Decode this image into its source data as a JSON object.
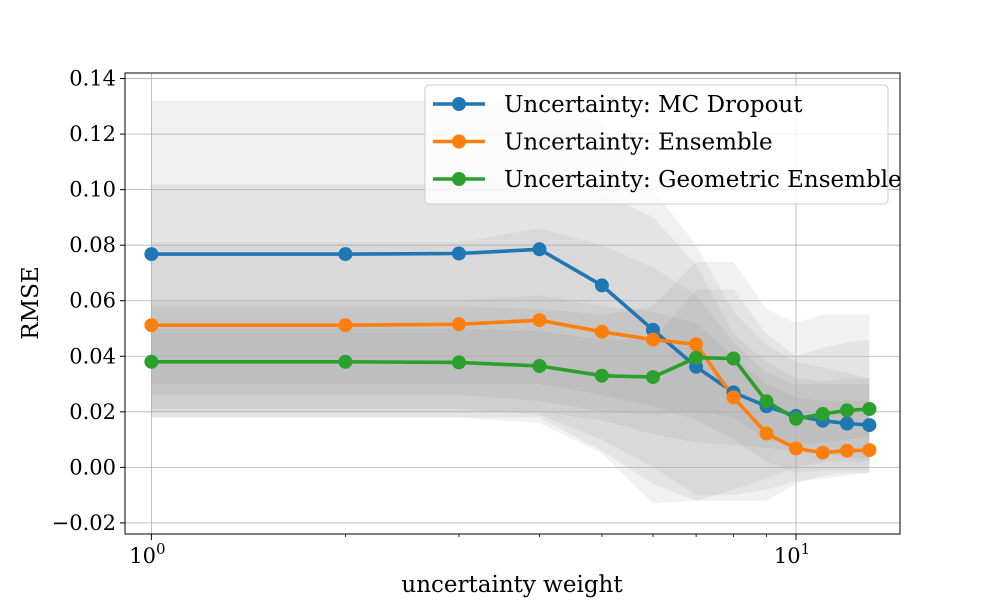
{
  "chart_data": {
    "type": "line",
    "title": "",
    "xlabel": "uncertainty weight",
    "ylabel": "RMSE",
    "xscale": "log",
    "xlim": [
      0.91,
      14.5
    ],
    "ylim": [
      -0.024,
      0.142
    ],
    "grid": true,
    "legend_location": "top-right",
    "x": [
      1,
      2,
      3,
      4,
      5,
      6,
      7,
      8,
      9,
      10,
      11,
      12,
      13
    ],
    "y_ticks": [
      -0.02,
      0.0,
      0.02,
      0.04,
      0.06,
      0.08,
      0.1,
      0.12,
      0.14
    ],
    "y_tick_labels": [
      "−0.02",
      "0.00",
      "0.02",
      "0.04",
      "0.06",
      "0.08",
      "0.10",
      "0.12",
      "0.14"
    ],
    "x_ticks": [
      {
        "value": 1,
        "base": "10",
        "exponent": "0"
      },
      {
        "value": 10,
        "base": "10",
        "exponent": "1"
      }
    ],
    "series": [
      {
        "name": "Uncertainty: MC Dropout",
        "color": "#1f77b4",
        "values": [
          0.0768,
          0.0768,
          0.077,
          0.0785,
          0.0655,
          0.0495,
          0.0362,
          0.027,
          0.022,
          0.0185,
          0.0168,
          0.0158,
          0.0152
        ],
        "band_inner": {
          "lower": [
            0.02,
            0.02,
            0.02,
            0.02,
            0.017,
            0.012,
            0.009,
            0.008,
            0.007,
            0.006,
            0.005,
            0.004,
            0.003
          ],
          "upper": [
            0.102,
            0.102,
            0.102,
            0.102,
            0.099,
            0.09,
            0.073,
            0.048,
            0.038,
            0.032,
            0.031,
            0.032,
            0.032
          ]
        },
        "band_outer": {
          "lower": [
            0.018,
            0.018,
            0.018,
            0.018,
            0.006,
            -0.006,
            -0.012,
            -0.012,
            -0.012,
            -0.006,
            -0.003,
            -0.002,
            -0.002
          ],
          "upper": [
            0.132,
            0.132,
            0.132,
            0.132,
            0.124,
            0.1,
            0.08,
            0.056,
            0.044,
            0.038,
            0.036,
            0.034,
            0.032
          ]
        }
      },
      {
        "name": "Uncertainty: Ensemble",
        "color": "#ff7f0e",
        "values": [
          0.0512,
          0.0512,
          0.0515,
          0.053,
          0.0488,
          0.046,
          0.0443,
          0.0252,
          0.0122,
          0.0068,
          0.0053,
          0.006,
          0.0062
        ],
        "band_inner": {
          "lower": [
            0.03,
            0.03,
            0.03,
            0.03,
            0.026,
            0.022,
            0.017,
            0.01,
            0.002,
            -0.002,
            -0.001,
            -0.001,
            -0.001
          ],
          "upper": [
            0.06,
            0.06,
            0.06,
            0.062,
            0.058,
            0.056,
            0.052,
            0.04,
            0.03,
            0.025,
            0.024,
            0.024,
            0.024
          ]
        },
        "band_outer": {
          "lower": [
            0.021,
            0.021,
            0.021,
            0.019,
            0.01,
            0.0,
            -0.01,
            -0.01,
            -0.008,
            -0.005,
            -0.004,
            -0.003,
            -0.002
          ],
          "upper": [
            0.081,
            0.081,
            0.081,
            0.086,
            0.08,
            0.072,
            0.062,
            0.045,
            0.034,
            0.03,
            0.03,
            0.03,
            0.03
          ]
        }
      },
      {
        "name": "Uncertainty: Geometric Ensemble",
        "color": "#2ca02c",
        "values": [
          0.038,
          0.038,
          0.0378,
          0.0365,
          0.033,
          0.0325,
          0.0395,
          0.0392,
          0.0238,
          0.0175,
          0.0192,
          0.0205,
          0.021
        ],
        "band_inner": {
          "lower": [
            0.026,
            0.026,
            0.026,
            0.024,
            0.02,
            0.019,
            0.02,
            0.018,
            0.01,
            0.008,
            0.009,
            0.01,
            0.011
          ],
          "upper": [
            0.05,
            0.05,
            0.05,
            0.049,
            0.046,
            0.046,
            0.064,
            0.064,
            0.048,
            0.04,
            0.043,
            0.045,
            0.046
          ]
        },
        "band_outer": {
          "lower": [
            0.018,
            0.018,
            0.018,
            0.016,
            0.005,
            -0.013,
            -0.012,
            -0.008,
            -0.004,
            0.0,
            0.002,
            0.002,
            0.002
          ],
          "upper": [
            0.058,
            0.058,
            0.058,
            0.057,
            0.055,
            0.058,
            0.074,
            0.074,
            0.057,
            0.052,
            0.055,
            0.055,
            0.055
          ]
        }
      }
    ]
  }
}
